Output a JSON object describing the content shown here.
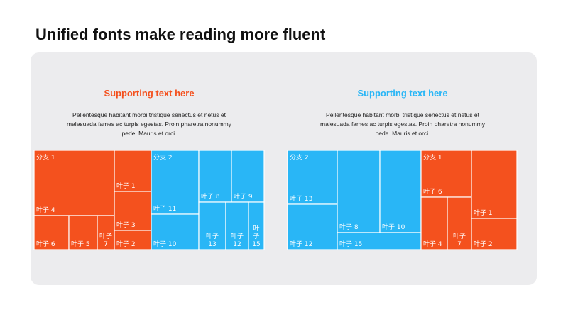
{
  "page": {
    "title": "Unified fonts make reading more fluent"
  },
  "colors": {
    "orange": "#f4511e",
    "blue": "#29b6f6",
    "panel": "#ececee"
  },
  "columns": [
    {
      "title": "Supporting text here",
      "title_color": "#f4511e",
      "description": "Pellentesque habitant morbi tristique senectus et netus et malesuada fames ac turpis egestas. Proin pharetra nonummy pede. Mauris et orci."
    },
    {
      "title": "Supporting text here",
      "title_color": "#29b6f6",
      "description": "Pellentesque habitant morbi tristique senectus et netus et malesuada fames ac turpis egestas. Proin pharetra nonummy pede. Mauris et orci."
    }
  ],
  "chart_data": [
    {
      "type": "treemap",
      "branches": [
        {
          "name": "分支 1",
          "color": "#f4511e",
          "leaves": [
            {
              "name": "叶子 4"
            },
            {
              "name": "叶子 6"
            },
            {
              "name": "叶子 5"
            },
            {
              "name": "叶子 7"
            },
            {
              "name": "叶子 1"
            },
            {
              "name": "叶子 3"
            },
            {
              "name": "叶子 2"
            }
          ]
        },
        {
          "name": "分支 2",
          "color": "#29b6f6",
          "leaves": [
            {
              "name": "叶子 11"
            },
            {
              "name": "叶子 10"
            },
            {
              "name": "叶子 8"
            },
            {
              "name": "叶子 9"
            },
            {
              "name": "叶子 13"
            },
            {
              "name": "叶子 12"
            },
            {
              "name": "叶子 15"
            }
          ]
        }
      ]
    },
    {
      "type": "treemap",
      "branches": [
        {
          "name": "分支 2",
          "color": "#29b6f6",
          "leaves": [
            {
              "name": "叶子 13"
            },
            {
              "name": "叶子 12"
            },
            {
              "name": "叶子 8"
            },
            {
              "name": "叶子 10"
            },
            {
              "name": "叶子 15"
            }
          ]
        },
        {
          "name": "分支 1",
          "color": "#f4511e",
          "leaves": [
            {
              "name": "叶子 6"
            },
            {
              "name": "叶子 4"
            },
            {
              "name": "叶子 7"
            },
            {
              "name": "叶子 1"
            },
            {
              "name": "叶子 2"
            }
          ]
        }
      ]
    }
  ]
}
